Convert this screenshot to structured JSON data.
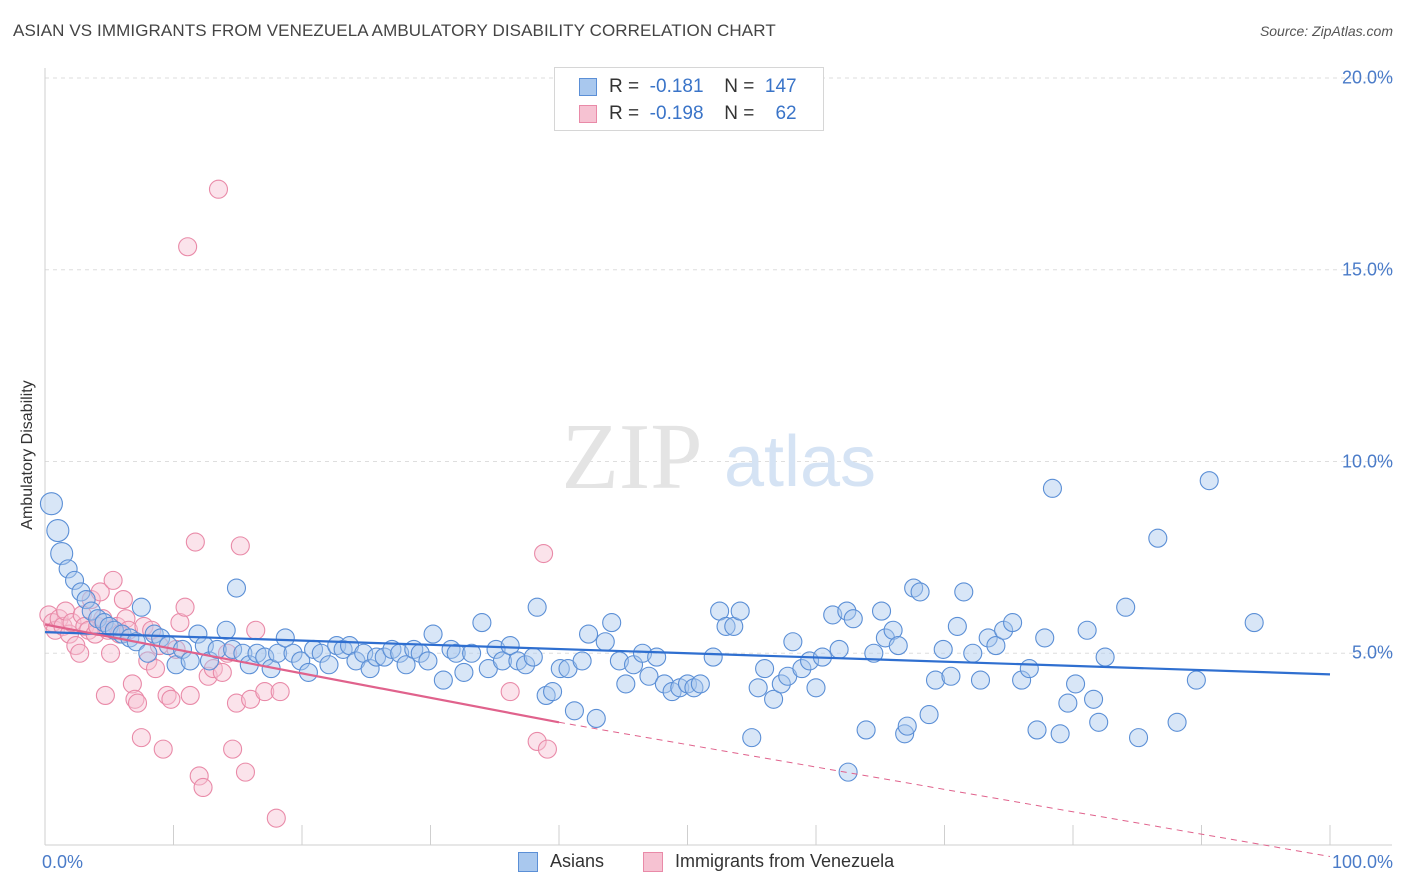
{
  "title": "ASIAN VS IMMIGRANTS FROM VENEZUELA AMBULATORY DISABILITY CORRELATION CHART",
  "source": "Source: ZipAtlas.com",
  "watermark": {
    "zip": "ZIP",
    "atlas": "atlas"
  },
  "colors": {
    "blue_fill": "#a9c8ee",
    "blue_stroke": "#5b8fd6",
    "blue_line": "#2f6fd0",
    "pink_fill": "#f6c2d2",
    "pink_stroke": "#e98aa8",
    "pink_line": "#e0628c",
    "tick_text": "#4a7bc8",
    "grid": "#dedede"
  },
  "legend": {
    "rows": [
      {
        "r_label": "R =",
        "r_value": "-0.181",
        "n_label": "N =",
        "n_value": "147"
      },
      {
        "r_label": "R =",
        "r_value": "-0.198",
        "n_label": "N =",
        "n_value": "62"
      }
    ]
  },
  "bottom_legend": [
    "Asians",
    "Immigrants from Venezuela"
  ],
  "chart_data": {
    "type": "scatter",
    "title": "ASIAN VS IMMIGRANTS FROM VENEZUELA AMBULATORY DISABILITY CORRELATION CHART",
    "xlabel": "",
    "ylabel": "Ambulatory Disability",
    "xlim": [
      0,
      100
    ],
    "ylim": [
      0,
      20
    ],
    "x_tick_labels": [
      "0.0%",
      "100.0%"
    ],
    "y_ticks": [
      5,
      10,
      15,
      20
    ],
    "y_tick_labels": [
      "5.0%",
      "10.0%",
      "15.0%",
      "20.0%"
    ],
    "grid": true,
    "legend_position": "top-center",
    "series": [
      {
        "name": "Asians",
        "r": -0.181,
        "n": 147,
        "trend": {
          "x": [
            0,
            100
          ],
          "y": [
            5.55,
            4.45
          ]
        },
        "points": [
          [
            0.5,
            8.9
          ],
          [
            1.0,
            8.2
          ],
          [
            1.3,
            7.6
          ],
          [
            1.8,
            7.2
          ],
          [
            2.3,
            6.9
          ],
          [
            2.8,
            6.6
          ],
          [
            3.2,
            6.4
          ],
          [
            3.6,
            6.1
          ],
          [
            4.1,
            5.9
          ],
          [
            4.6,
            5.8
          ],
          [
            5.0,
            5.7
          ],
          [
            5.4,
            5.6
          ],
          [
            6.0,
            5.5
          ],
          [
            6.6,
            5.4
          ],
          [
            7.1,
            5.3
          ],
          [
            7.5,
            6.2
          ],
          [
            8.0,
            5.0
          ],
          [
            8.5,
            5.5
          ],
          [
            9.0,
            5.4
          ],
          [
            9.6,
            5.2
          ],
          [
            10.2,
            4.7
          ],
          [
            10.7,
            5.1
          ],
          [
            11.3,
            4.8
          ],
          [
            11.9,
            5.5
          ],
          [
            12.4,
            5.2
          ],
          [
            12.8,
            4.8
          ],
          [
            13.4,
            5.1
          ],
          [
            14.1,
            5.6
          ],
          [
            14.6,
            5.1
          ],
          [
            14.9,
            6.7
          ],
          [
            15.4,
            5.0
          ],
          [
            15.9,
            4.7
          ],
          [
            16.5,
            5.0
          ],
          [
            17.1,
            4.9
          ],
          [
            17.6,
            4.6
          ],
          [
            18.1,
            5.0
          ],
          [
            18.7,
            5.4
          ],
          [
            19.3,
            5.0
          ],
          [
            19.9,
            4.8
          ],
          [
            20.5,
            4.5
          ],
          [
            20.9,
            5.1
          ],
          [
            21.5,
            5.0
          ],
          [
            22.1,
            4.7
          ],
          [
            22.7,
            5.2
          ],
          [
            23.2,
            5.1
          ],
          [
            23.7,
            5.2
          ],
          [
            24.2,
            4.8
          ],
          [
            24.8,
            5.0
          ],
          [
            25.3,
            4.6
          ],
          [
            25.8,
            4.9
          ],
          [
            26.4,
            4.9
          ],
          [
            27.0,
            5.1
          ],
          [
            27.6,
            5.0
          ],
          [
            28.1,
            4.7
          ],
          [
            28.7,
            5.1
          ],
          [
            29.2,
            5.0
          ],
          [
            29.8,
            4.8
          ],
          [
            30.2,
            5.5
          ],
          [
            31.0,
            4.3
          ],
          [
            31.6,
            5.1
          ],
          [
            32.0,
            5.0
          ],
          [
            32.6,
            4.5
          ],
          [
            33.2,
            5.0
          ],
          [
            34.0,
            5.8
          ],
          [
            34.5,
            4.6
          ],
          [
            35.1,
            5.1
          ],
          [
            35.6,
            4.8
          ],
          [
            36.2,
            5.2
          ],
          [
            36.8,
            4.8
          ],
          [
            37.4,
            4.7
          ],
          [
            38.0,
            4.9
          ],
          [
            38.3,
            6.2
          ],
          [
            39.0,
            3.9
          ],
          [
            39.5,
            4.0
          ],
          [
            40.1,
            4.6
          ],
          [
            40.7,
            4.6
          ],
          [
            41.2,
            3.5
          ],
          [
            41.8,
            4.8
          ],
          [
            42.3,
            5.5
          ],
          [
            42.9,
            3.3
          ],
          [
            43.6,
            5.3
          ],
          [
            44.1,
            5.8
          ],
          [
            44.7,
            4.8
          ],
          [
            45.2,
            4.2
          ],
          [
            45.8,
            4.7
          ],
          [
            46.5,
            5.0
          ],
          [
            47.0,
            4.4
          ],
          [
            47.6,
            4.9
          ],
          [
            48.2,
            4.2
          ],
          [
            48.8,
            4.0
          ],
          [
            49.4,
            4.1
          ],
          [
            50.0,
            4.2
          ],
          [
            50.5,
            4.1
          ],
          [
            51.0,
            4.2
          ],
          [
            52.0,
            4.9
          ],
          [
            52.5,
            6.1
          ],
          [
            53.0,
            5.7
          ],
          [
            53.6,
            5.7
          ],
          [
            54.1,
            6.1
          ],
          [
            55.0,
            2.8
          ],
          [
            55.5,
            4.1
          ],
          [
            56.0,
            4.6
          ],
          [
            56.7,
            3.8
          ],
          [
            57.3,
            4.2
          ],
          [
            57.8,
            4.4
          ],
          [
            58.2,
            5.3
          ],
          [
            58.9,
            4.6
          ],
          [
            59.5,
            4.8
          ],
          [
            60.0,
            4.1
          ],
          [
            60.5,
            4.9
          ],
          [
            61.3,
            6.0
          ],
          [
            61.8,
            5.1
          ],
          [
            62.4,
            6.1
          ],
          [
            62.9,
            5.9
          ],
          [
            63.9,
            3.0
          ],
          [
            64.5,
            5.0
          ],
          [
            65.1,
            6.1
          ],
          [
            65.4,
            5.4
          ],
          [
            66.0,
            5.6
          ],
          [
            66.4,
            5.2
          ],
          [
            66.9,
            2.9
          ],
          [
            67.1,
            3.1
          ],
          [
            67.6,
            6.7
          ],
          [
            68.1,
            6.6
          ],
          [
            68.8,
            3.4
          ],
          [
            69.3,
            4.3
          ],
          [
            69.9,
            5.1
          ],
          [
            70.5,
            4.4
          ],
          [
            71.0,
            5.7
          ],
          [
            71.5,
            6.6
          ],
          [
            72.2,
            5.0
          ],
          [
            72.8,
            4.3
          ],
          [
            73.4,
            5.4
          ],
          [
            74.0,
            5.2
          ],
          [
            74.6,
            5.6
          ],
          [
            75.3,
            5.8
          ],
          [
            76.0,
            4.3
          ],
          [
            76.6,
            4.6
          ],
          [
            77.2,
            3.0
          ],
          [
            77.8,
            5.4
          ],
          [
            78.4,
            9.3
          ],
          [
            79.0,
            2.9
          ],
          [
            79.6,
            3.7
          ],
          [
            80.2,
            4.2
          ],
          [
            81.1,
            5.6
          ],
          [
            81.6,
            3.8
          ],
          [
            82.0,
            3.2
          ],
          [
            82.5,
            4.9
          ],
          [
            84.1,
            6.2
          ],
          [
            85.1,
            2.8
          ],
          [
            86.6,
            8.0
          ],
          [
            88.1,
            3.2
          ],
          [
            89.6,
            4.3
          ],
          [
            90.6,
            9.5
          ],
          [
            94.1,
            5.8
          ],
          [
            62.5,
            1.9
          ]
        ]
      },
      {
        "name": "Immigrants from Venezuela",
        "r": -0.198,
        "n": 62,
        "trend": {
          "x": [
            0,
            40
          ],
          "y": [
            5.75,
            3.2
          ]
        },
        "trend_dashed": {
          "x": [
            40,
            100
          ],
          "y": [
            3.2,
            -0.3
          ]
        },
        "points": [
          [
            0.3,
            6.0
          ],
          [
            0.6,
            5.8
          ],
          [
            0.8,
            5.6
          ],
          [
            1.1,
            5.9
          ],
          [
            1.4,
            5.7
          ],
          [
            1.6,
            6.1
          ],
          [
            1.9,
            5.5
          ],
          [
            2.1,
            5.8
          ],
          [
            2.4,
            5.2
          ],
          [
            2.7,
            5.0
          ],
          [
            2.9,
            6.0
          ],
          [
            3.1,
            5.7
          ],
          [
            3.4,
            5.6
          ],
          [
            3.6,
            6.4
          ],
          [
            3.9,
            5.5
          ],
          [
            4.1,
            5.7
          ],
          [
            4.3,
            6.6
          ],
          [
            4.5,
            5.9
          ],
          [
            4.7,
            3.9
          ],
          [
            4.9,
            5.6
          ],
          [
            5.1,
            5.0
          ],
          [
            5.3,
            6.9
          ],
          [
            5.6,
            5.7
          ],
          [
            5.8,
            5.5
          ],
          [
            6.1,
            6.4
          ],
          [
            6.3,
            5.9
          ],
          [
            6.5,
            5.6
          ],
          [
            6.8,
            4.2
          ],
          [
            7.0,
            3.8
          ],
          [
            7.2,
            3.7
          ],
          [
            7.5,
            2.8
          ],
          [
            7.7,
            5.7
          ],
          [
            8.0,
            4.8
          ],
          [
            8.3,
            5.6
          ],
          [
            8.6,
            4.6
          ],
          [
            8.9,
            5.2
          ],
          [
            9.2,
            2.5
          ],
          [
            9.5,
            3.9
          ],
          [
            9.8,
            3.8
          ],
          [
            10.2,
            5.1
          ],
          [
            10.5,
            5.8
          ],
          [
            10.9,
            6.2
          ],
          [
            11.3,
            3.9
          ],
          [
            11.7,
            7.9
          ],
          [
            12.0,
            1.8
          ],
          [
            12.3,
            1.5
          ],
          [
            12.7,
            4.4
          ],
          [
            13.1,
            4.6
          ],
          [
            13.5,
            17.1
          ],
          [
            13.8,
            4.5
          ],
          [
            14.2,
            5.0
          ],
          [
            14.6,
            2.5
          ],
          [
            14.9,
            3.7
          ],
          [
            15.2,
            7.8
          ],
          [
            15.6,
            1.9
          ],
          [
            16.0,
            3.8
          ],
          [
            16.4,
            5.6
          ],
          [
            17.1,
            4.0
          ],
          [
            18.0,
            0.7
          ],
          [
            11.1,
            15.6
          ],
          [
            36.2,
            4.0
          ],
          [
            38.3,
            2.7
          ],
          [
            39.1,
            2.5
          ],
          [
            38.8,
            7.6
          ],
          [
            18.3,
            4.0
          ]
        ]
      }
    ]
  }
}
